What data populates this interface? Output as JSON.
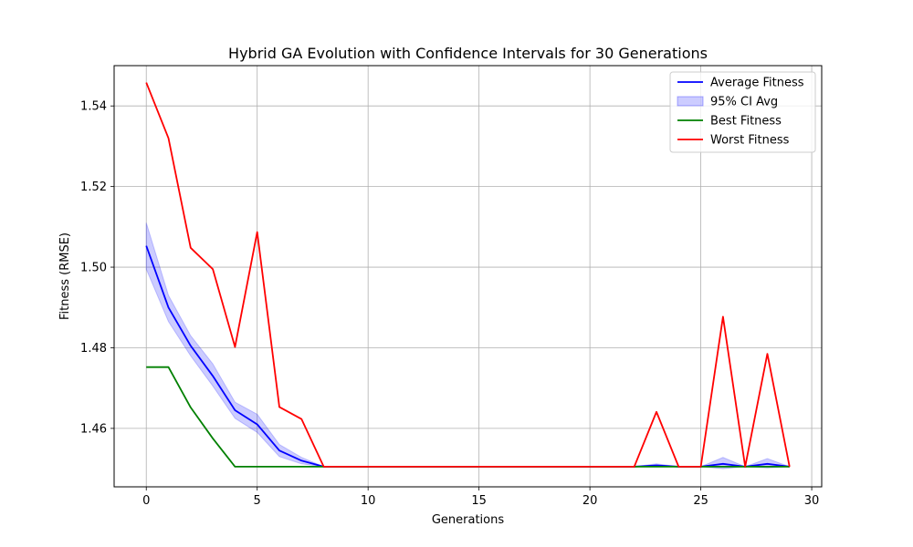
{
  "chart_data": {
    "type": "line",
    "title": "Hybrid GA Evolution with Confidence Intervals for 30 Generations",
    "xlabel": "Generations",
    "ylabel": "Fitness (RMSE)",
    "xlim": [
      -1.45,
      30.45
    ],
    "ylim": [
      1.4455,
      1.55
    ],
    "xticks": [
      0,
      5,
      10,
      15,
      20,
      25,
      30
    ],
    "yticks": [
      1.46,
      1.48,
      1.5,
      1.52,
      1.54
    ],
    "x": [
      0,
      1,
      2,
      3,
      4,
      5,
      6,
      7,
      8,
      9,
      10,
      11,
      12,
      13,
      14,
      15,
      16,
      17,
      18,
      19,
      20,
      21,
      22,
      23,
      24,
      25,
      26,
      27,
      28,
      29
    ],
    "grid": true,
    "legend_position": "top-right",
    "series": [
      {
        "name": "Average Fitness",
        "kind": "line",
        "color": "#0000ff",
        "values": [
          1.5053,
          1.49,
          1.4805,
          1.473,
          1.4645,
          1.461,
          1.4545,
          1.452,
          1.4505,
          1.4505,
          1.4505,
          1.4505,
          1.4505,
          1.4505,
          1.4505,
          1.4505,
          1.4505,
          1.4505,
          1.4505,
          1.4505,
          1.4505,
          1.4505,
          1.4505,
          1.4508,
          1.4505,
          1.4505,
          1.4512,
          1.4505,
          1.4512,
          1.4505
        ]
      },
      {
        "name": "95% CI Avg",
        "kind": "band",
        "color": "#0000ff",
        "lower": [
          1.4995,
          1.4865,
          1.478,
          1.4705,
          1.4625,
          1.459,
          1.453,
          1.4512,
          1.4505,
          1.4505,
          1.4505,
          1.4505,
          1.4505,
          1.4505,
          1.4505,
          1.4505,
          1.4505,
          1.4505,
          1.4505,
          1.4505,
          1.4505,
          1.4505,
          1.4505,
          1.4505,
          1.4505,
          1.4505,
          1.45,
          1.4505,
          1.4502,
          1.4505
        ],
        "upper": [
          1.511,
          1.493,
          1.483,
          1.476,
          1.4665,
          1.4635,
          1.456,
          1.4528,
          1.4505,
          1.4505,
          1.4505,
          1.4505,
          1.4505,
          1.4505,
          1.4505,
          1.4505,
          1.4505,
          1.4505,
          1.4505,
          1.4505,
          1.4505,
          1.4505,
          1.4505,
          1.4512,
          1.4505,
          1.4505,
          1.4528,
          1.4505,
          1.4525,
          1.4505
        ]
      },
      {
        "name": "Best Fitness",
        "kind": "line",
        "color": "#008000",
        "values": [
          1.4752,
          1.4752,
          1.4652,
          1.4575,
          1.4505,
          1.4505,
          1.4505,
          1.4505,
          1.4505,
          1.4505,
          1.4505,
          1.4505,
          1.4505,
          1.4505,
          1.4505,
          1.4505,
          1.4505,
          1.4505,
          1.4505,
          1.4505,
          1.4505,
          1.4505,
          1.4505,
          1.4505,
          1.4505,
          1.4505,
          1.4505,
          1.4505,
          1.4505,
          1.4505
        ]
      },
      {
        "name": "Worst Fitness",
        "kind": "line",
        "color": "#ff0000",
        "values": [
          1.5458,
          1.532,
          1.5048,
          1.4995,
          1.4802,
          1.5087,
          1.4653,
          1.4623,
          1.4505,
          1.4505,
          1.4505,
          1.4505,
          1.4505,
          1.4505,
          1.4505,
          1.4505,
          1.4505,
          1.4505,
          1.4505,
          1.4505,
          1.4505,
          1.4505,
          1.4505,
          1.4641,
          1.4505,
          1.4505,
          1.4877,
          1.4505,
          1.4785,
          1.4505
        ]
      }
    ]
  }
}
